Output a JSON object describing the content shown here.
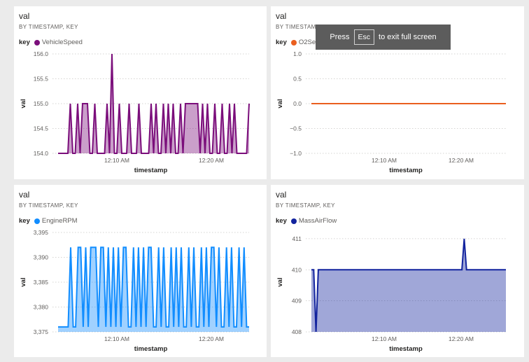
{
  "overlay": {
    "press": "Press",
    "key": "Esc",
    "message": "to exit full screen"
  },
  "tiles": [
    {
      "title": "val",
      "subtitle": "BY TIMESTAMP, KEY",
      "legend_key": "key",
      "series_name": "VehicleSpeed",
      "color": "#7b0e7b"
    },
    {
      "title": "val",
      "subtitle": "BY TIMESTAMP, KEY",
      "legend_key": "key",
      "series_name": "O2SensorVoltage",
      "color": "#ea5f1f"
    },
    {
      "title": "val",
      "subtitle": "BY TIMESTAMP, KEY",
      "legend_key": "key",
      "series_name": "EngineRPM",
      "color": "#118dff"
    },
    {
      "title": "val",
      "subtitle": "BY TIMESTAMP, KEY",
      "legend_key": "key",
      "series_name": "MassAirFlow",
      "color": "#12239e"
    }
  ],
  "chart_data": [
    {
      "type": "area",
      "title": "val",
      "subtitle": "BY TIMESTAMP, KEY",
      "xlabel": "timestamp",
      "ylabel": "val",
      "x_ticks": [
        "12:10 AM",
        "12:20 AM"
      ],
      "y_ticks": [
        "154.0",
        "154.5",
        "155.0",
        "155.5",
        "156.0"
      ],
      "ylim": [
        154.0,
        156.0
      ],
      "grid": true,
      "legend": "top-left",
      "series": [
        {
          "name": "VehicleSpeed",
          "color": "#7b0e7b",
          "values": [
            154,
            154,
            154,
            154,
            154,
            155,
            154,
            154,
            155,
            154,
            155,
            155,
            155,
            154,
            154,
            155,
            154,
            154,
            154,
            154,
            155,
            154,
            156,
            154,
            154,
            155,
            154,
            154,
            154,
            155,
            154,
            154,
            154,
            155,
            154,
            154,
            154,
            154,
            155,
            154,
            155,
            154,
            154,
            155,
            154,
            155,
            154,
            155,
            154,
            154,
            155,
            154,
            155,
            155,
            155,
            155,
            155,
            155,
            154,
            155,
            154,
            155,
            154,
            154,
            155,
            154,
            154,
            155,
            154,
            154,
            155,
            154,
            155,
            154,
            154,
            154,
            154,
            154,
            155
          ]
        }
      ]
    },
    {
      "type": "line",
      "title": "val",
      "subtitle": "BY TIMESTAMP, KEY",
      "xlabel": "timestamp",
      "ylabel": "val",
      "x_ticks": [
        "12:10 AM",
        "12:20 AM"
      ],
      "y_ticks": [
        "−1.0",
        "−0.5",
        "0.0",
        "0.5",
        "1.0"
      ],
      "ylim": [
        -1.0,
        1.0
      ],
      "grid": true,
      "legend": "top-left",
      "series": [
        {
          "name": "O2SensorVoltage",
          "color": "#ea5f1f",
          "values": [
            0,
            0
          ]
        }
      ]
    },
    {
      "type": "area",
      "title": "val",
      "subtitle": "BY TIMESTAMP, KEY",
      "xlabel": "timestamp",
      "ylabel": "val",
      "x_ticks": [
        "12:10 AM",
        "12:20 AM"
      ],
      "y_ticks": [
        "3,375",
        "3,380",
        "3,385",
        "3,390",
        "3,395"
      ],
      "ylim": [
        3375,
        3395
      ],
      "grid": true,
      "legend": "top-left",
      "series": [
        {
          "name": "EngineRPM",
          "color": "#118dff",
          "values": [
            3376,
            3376,
            3376,
            3376,
            3376,
            3392,
            3376,
            3376,
            3392,
            3392,
            3376,
            3392,
            3376,
            3392,
            3392,
            3392,
            3376,
            3392,
            3392,
            3376,
            3392,
            3376,
            3392,
            3376,
            3392,
            3376,
            3392,
            3392,
            3376,
            3376,
            3392,
            3376,
            3392,
            3376,
            3392,
            3376,
            3392,
            3392,
            3376,
            3376,
            3392,
            3376,
            3392,
            3376,
            3376,
            3392,
            3376,
            3392,
            3376,
            3392,
            3376,
            3376,
            3392,
            3376,
            3392,
            3376,
            3376,
            3392,
            3376,
            3392,
            3376,
            3392,
            3392,
            3376,
            3392,
            3376,
            3376,
            3392,
            3376,
            3392,
            3376,
            3376,
            3392,
            3376,
            3392,
            3376,
            3376
          ]
        }
      ]
    },
    {
      "type": "area",
      "title": "val",
      "subtitle": "BY TIMESTAMP, KEY",
      "xlabel": "timestamp",
      "ylabel": "val",
      "x_ticks": [
        "12:10 AM",
        "12:20 AM"
      ],
      "y_ticks": [
        "408",
        "409",
        "410",
        "411"
      ],
      "ylim": [
        408,
        411.2
      ],
      "grid": true,
      "legend": "top-left",
      "series": [
        {
          "name": "MassAirFlow",
          "color": "#12239e",
          "values": [
            410,
            410,
            408,
            410,
            410,
            410,
            410,
            410,
            410,
            410,
            410,
            410,
            410,
            410,
            410,
            410,
            410,
            410,
            410,
            410,
            410,
            410,
            410,
            410,
            410,
            410,
            410,
            410,
            410,
            410,
            410,
            410,
            410,
            410,
            410,
            410,
            410,
            410,
            410,
            410,
            410,
            410,
            410,
            410,
            410,
            410,
            410,
            410,
            410,
            410,
            410,
            410,
            410,
            410,
            410,
            410,
            410,
            410,
            410,
            410,
            410,
            410,
            410,
            410,
            410,
            410,
            411,
            410,
            410,
            410,
            410,
            410,
            410,
            410,
            410,
            410,
            410,
            410,
            410,
            410,
            410,
            410,
            410,
            410,
            410
          ]
        }
      ]
    }
  ]
}
